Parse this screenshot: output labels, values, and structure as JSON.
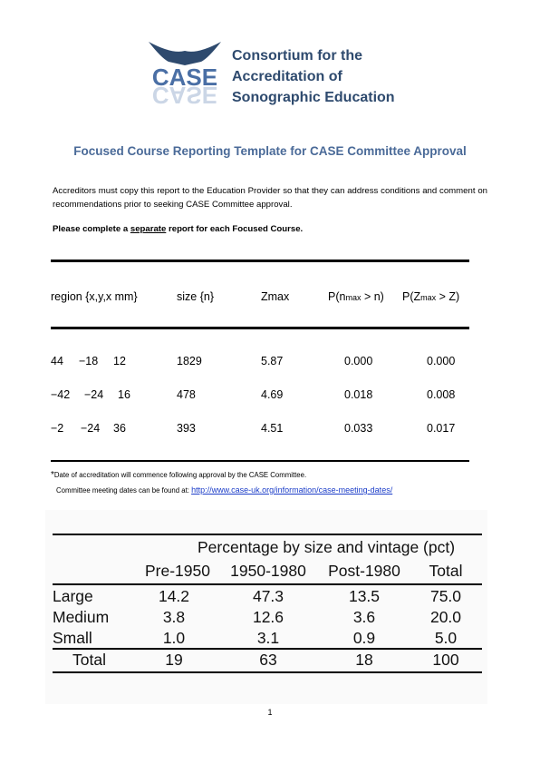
{
  "header": {
    "logo_text": "CASE",
    "org_lines": [
      "Consortium for the",
      "Accreditation of",
      "Sonographic Education"
    ],
    "brand_color": "#2e4a6e"
  },
  "doc_title": "Focused Course Reporting Template for CASE Committee Approval",
  "intro": "Accreditors must copy this report to the Education Provider so that they can address conditions and comment on recommendations prior to seeking CASE Committee approval.",
  "instruction": {
    "before": "Please complete a ",
    "underlined": "separate",
    "after": " report for each Focused Course."
  },
  "table1": {
    "headers": {
      "region": "region {x,y,x mm}",
      "size": "size {n}",
      "zmax": "Zmax",
      "p_n_main": "P(n",
      "p_n_sub": "max",
      "p_n_tail": " > n)",
      "p_z_main": "P(Z",
      "p_z_sub": "max",
      "p_z_tail": " > Z)"
    },
    "rows": [
      {
        "x": "44",
        "y": "−18",
        "z": "12",
        "size": "1829",
        "zmax": "5.87",
        "pn": "0.000",
        "pz": "0.000"
      },
      {
        "x": "−42",
        "y": "−24",
        "z": "16",
        "size": "478",
        "zmax": "4.69",
        "pn": "0.018",
        "pz": "0.008"
      },
      {
        "x": "−2",
        "y": "−24",
        "z": "36",
        "size": "393",
        "zmax": "4.51",
        "pn": "0.033",
        "pz": "0.017"
      }
    ]
  },
  "footnote": {
    "asterisk": "*",
    "line1": "Date of accreditation will commence following approval by the CASE Committee.",
    "line2": "Committee meeting dates can be found at: ",
    "link": "http://www.case-uk.org/information/case-meeting-dates/"
  },
  "table2": {
    "span_header": "Percentage by size and vintage (pct)",
    "columns": [
      "Pre-1950",
      "1950-1980",
      "Post-1980",
      "Total"
    ],
    "rows": [
      {
        "label": "Large",
        "values": [
          "14.2",
          "47.3",
          "13.5",
          "75.0"
        ]
      },
      {
        "label": "Medium",
        "values": [
          "3.8",
          "12.6",
          "3.6",
          "20.0"
        ]
      },
      {
        "label": "Small",
        "values": [
          "1.0",
          "3.1",
          "0.9",
          "5.0"
        ]
      }
    ],
    "total": {
      "label": "Total",
      "values": [
        "19",
        "63",
        "18",
        "100"
      ]
    }
  },
  "page_number": "1"
}
